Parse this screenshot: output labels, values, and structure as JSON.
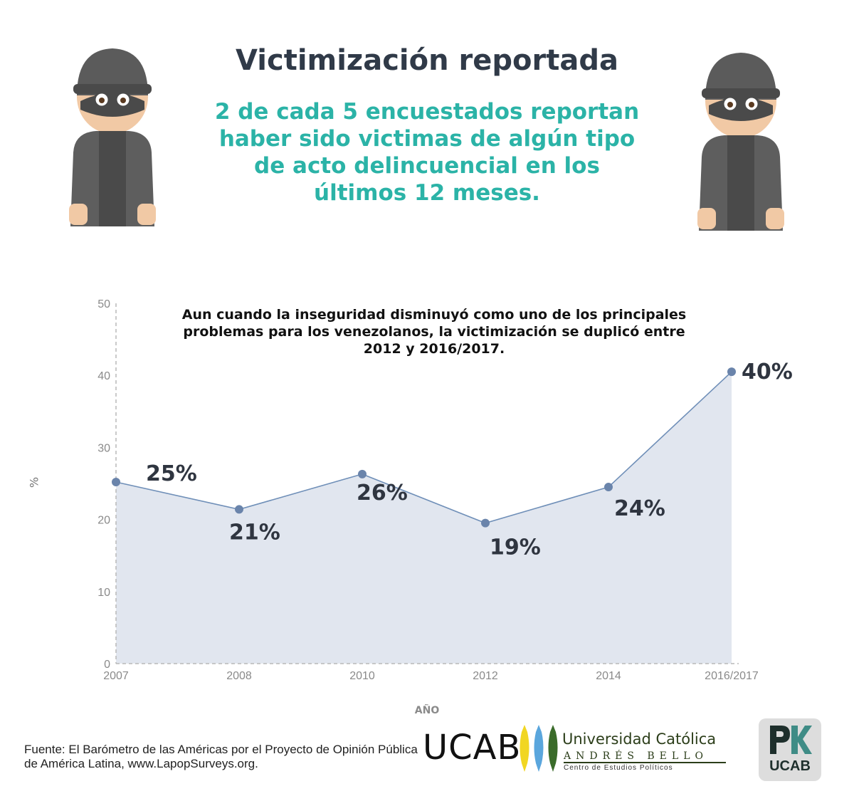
{
  "header": {
    "title": "Victimización reportada",
    "subtitle": "2 de cada 5 encuestados reportan haber sido victimas de algún tipo de acto delincuencial en los últimos 12 meses."
  },
  "icons": {
    "left": "thief-icon",
    "right": "thief-icon"
  },
  "chart_data": {
    "type": "area",
    "annotation": "Aun cuando la inseguridad disminuyó como uno de los principales problemas para los venezolanos, la victimización se duplicó entre 2012 y 2016/2017.",
    "categories": [
      "2007",
      "2008",
      "2010",
      "2012",
      "2014",
      "2016/2017"
    ],
    "values": [
      25.2,
      21.4,
      26.3,
      19.5,
      24.5,
      40.5
    ],
    "data_labels": [
      "25%",
      "21%",
      "26%",
      "19%",
      "24%",
      "40%"
    ],
    "ylabel": "%",
    "xlabel": "AÑO",
    "ylim": [
      0,
      50
    ],
    "yticks": [
      0,
      10,
      20,
      30,
      40,
      50
    ],
    "grid": false,
    "colors": {
      "line": "#6f8fb8",
      "fill": "#e1e6ef",
      "marker": "#6a84ab",
      "label": "#2f3540"
    }
  },
  "footer": {
    "source": "Fuente: El Barómetro de las Américas por el Proyecto de Opinión Pública de América Latina, www.LapopSurveys.org.",
    "ucab_logo": {
      "acronym": "UCAB",
      "name": "Universidad Católica",
      "sub": "ANDRÉS BELLO",
      "center": "Centro de Estudios Políticos"
    },
    "pk_logo": {
      "text": "UCAB"
    }
  },
  "colors": {
    "title": "#303a48",
    "accent": "#2bb3a7"
  }
}
